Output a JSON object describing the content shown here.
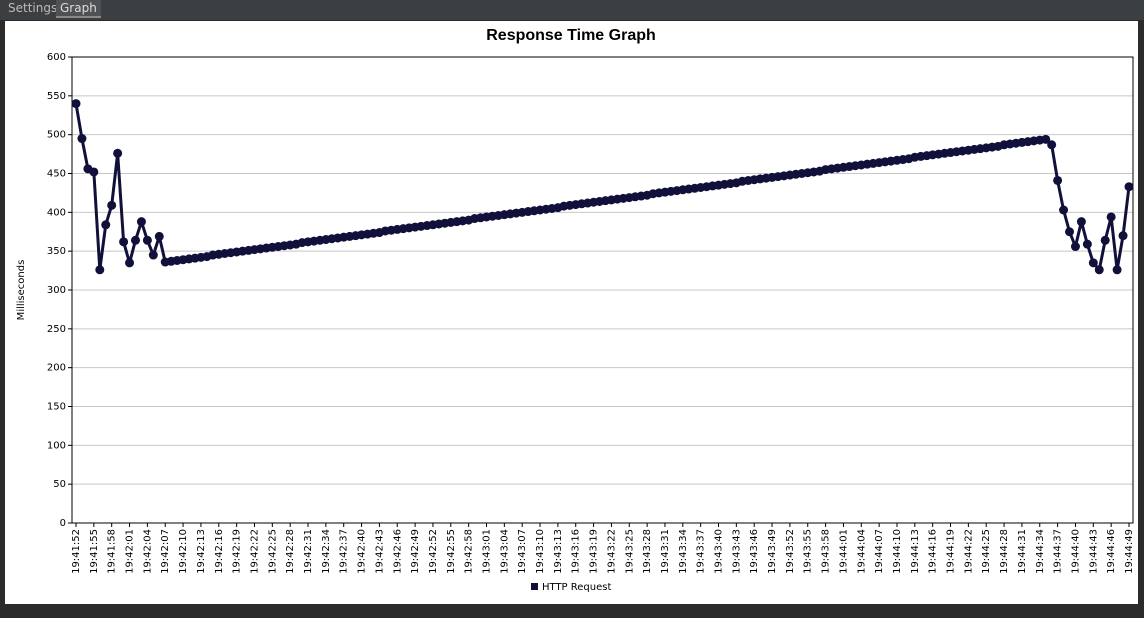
{
  "tabs": [
    "Settings",
    "Graph"
  ],
  "chart_data": {
    "type": "line",
    "title": "Response Time Graph",
    "ylabel": "Milliseconds",
    "ylim": [
      0,
      600
    ],
    "yticks": [
      0,
      50,
      100,
      150,
      200,
      250,
      300,
      350,
      400,
      450,
      500,
      550,
      600
    ],
    "grid": true,
    "legend": "bottom",
    "categories": [
      "19:41:52",
      null,
      null,
      "19:41:55",
      null,
      null,
      "19:41:58",
      null,
      null,
      "19:42:01",
      null,
      null,
      "19:42:04",
      null,
      null,
      "19:42:07",
      null,
      null,
      "19:42:10",
      null,
      null,
      "19:42:13",
      null,
      null,
      "19:42:16",
      null,
      null,
      "19:42:19",
      null,
      null,
      "19:42:22",
      null,
      null,
      "19:42:25",
      null,
      null,
      "19:42:28",
      null,
      null,
      "19:42:31",
      null,
      null,
      "19:42:34",
      null,
      null,
      "19:42:37",
      null,
      null,
      "19:42:40",
      null,
      null,
      "19:42:43",
      null,
      null,
      "19:42:46",
      null,
      null,
      "19:42:49",
      null,
      null,
      "19:42:52",
      null,
      null,
      "19:42:55",
      null,
      null,
      "19:42:58",
      null,
      null,
      "19:43:01",
      null,
      null,
      "19:43:04",
      null,
      null,
      "19:43:07",
      null,
      null,
      "19:43:10",
      null,
      null,
      "19:43:13",
      null,
      null,
      "19:43:16",
      null,
      null,
      "19:43:19",
      null,
      null,
      "19:43:22",
      null,
      null,
      "19:43:25",
      null,
      null,
      "19:43:28",
      null,
      null,
      "19:43:31",
      null,
      null,
      "19:43:34",
      null,
      null,
      "19:43:37",
      null,
      null,
      "19:43:40",
      null,
      null,
      "19:43:43",
      null,
      null,
      "19:43:46",
      null,
      null,
      "19:43:49",
      null,
      null,
      "19:43:52",
      null,
      null,
      "19:43:55",
      null,
      null,
      "19:43:58",
      null,
      null,
      "19:44:01",
      null,
      null,
      "19:44:04",
      null,
      null,
      "19:44:07",
      null,
      null,
      "19:44:10",
      null,
      null,
      "19:44:13",
      null,
      null,
      "19:44:16",
      null,
      null,
      "19:44:19",
      null,
      null,
      "19:44:22",
      null,
      null,
      "19:44:25",
      null,
      null,
      "19:44:28",
      null,
      null,
      "19:44:31",
      null,
      null,
      "19:44:34",
      null,
      null,
      "19:44:37",
      null,
      null,
      "19:44:40",
      null,
      null,
      "19:44:43",
      null,
      null,
      "19:44:46",
      null,
      null,
      "19:44:49"
    ],
    "series": [
      {
        "name": "HTTP Request",
        "color": "#10103a",
        "values": [
          540,
          495,
          456,
          452,
          326,
          384,
          409,
          476,
          362,
          335,
          364,
          388,
          364,
          345,
          369,
          336,
          337,
          338,
          339,
          340,
          341,
          342,
          343,
          345,
          346,
          347,
          348,
          349,
          350,
          351,
          352,
          353,
          354,
          355,
          356,
          357,
          358,
          359,
          361,
          362,
          363,
          364,
          365,
          366,
          367,
          368,
          369,
          370,
          371,
          372,
          373,
          374,
          376,
          377,
          378,
          379,
          380,
          381,
          382,
          383,
          384,
          385,
          386,
          387,
          388,
          389,
          390,
          392,
          393,
          394,
          395,
          396,
          397,
          398,
          399,
          400,
          401,
          402,
          403,
          404,
          405,
          406,
          408,
          409,
          410,
          411,
          412,
          413,
          414,
          415,
          416,
          417,
          418,
          419,
          420,
          421,
          422,
          424,
          425,
          426,
          427,
          428,
          429,
          430,
          431,
          432,
          433,
          434,
          435,
          436,
          437,
          438,
          440,
          441,
          442,
          443,
          444,
          445,
          446,
          447,
          448,
          449,
          450,
          451,
          452,
          453,
          455,
          456,
          457,
          458,
          459,
          460,
          461,
          462,
          463,
          464,
          465,
          466,
          467,
          468,
          469,
          471,
          472,
          473,
          474,
          475,
          476,
          477,
          478,
          479,
          480,
          481,
          482,
          483,
          484,
          485,
          487,
          488,
          489,
          490,
          491,
          492,
          493,
          494,
          487,
          441,
          403,
          375,
          356,
          388,
          359,
          335,
          326,
          364,
          394,
          326,
          370,
          433
        ]
      }
    ]
  }
}
